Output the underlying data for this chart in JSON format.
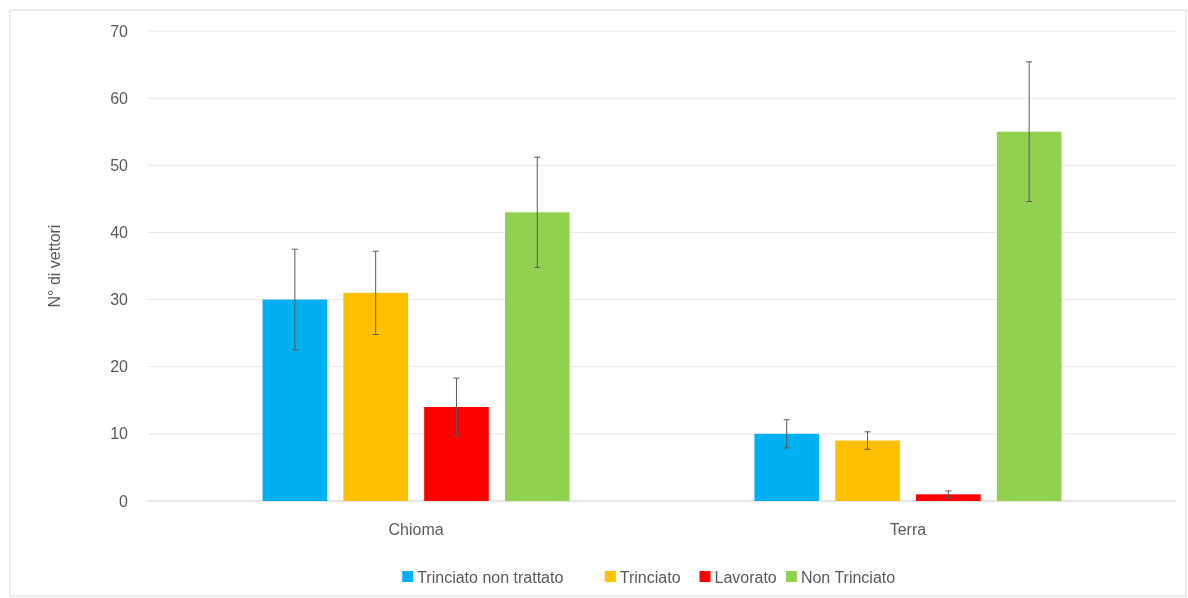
{
  "chart_data": {
    "type": "bar",
    "ylabel": "N° di vettori",
    "categories": [
      "Chioma",
      "Terra"
    ],
    "series": [
      {
        "name": "Trinciato non trattato",
        "color": "#00b0f0",
        "values": [
          30,
          10
        ],
        "errors": [
          7.5,
          2.1
        ]
      },
      {
        "name": "Trinciato",
        "color": "#ffc000",
        "values": [
          31,
          9
        ],
        "errors": [
          6.2,
          1.3
        ]
      },
      {
        "name": "Lavorato",
        "color": "#ff0000",
        "values": [
          14,
          1
        ],
        "errors": [
          4.3,
          0.5
        ]
      },
      {
        "name": "Non Trinciato",
        "color": "#92d050",
        "values": [
          43,
          55
        ],
        "errors": [
          8.2,
          10.4
        ]
      }
    ],
    "ylim": [
      0,
      70
    ],
    "yticks": [
      0,
      10,
      20,
      30,
      40,
      50,
      60,
      70
    ],
    "grid": "y",
    "legend": "bottom"
  }
}
